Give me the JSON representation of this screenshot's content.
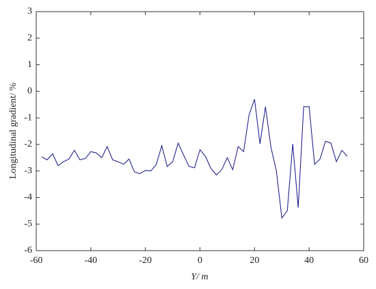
{
  "chart_data": {
    "type": "line",
    "x_label": "Y/ m",
    "y_label": "Longitudinal gradient/ %",
    "x": [
      -58,
      -56,
      -54,
      -52,
      -50,
      -48,
      -46,
      -44,
      -42,
      -40,
      -38,
      -36,
      -34,
      -32,
      -30,
      -28,
      -26,
      -24,
      -22,
      -20,
      -18,
      -16,
      -14,
      -12,
      -10,
      -8,
      -6,
      -4,
      -2,
      0,
      2,
      4,
      6,
      8,
      10,
      12,
      14,
      16,
      18,
      20,
      22,
      24,
      26,
      28,
      30,
      32,
      34,
      36,
      38,
      40,
      42,
      44,
      46,
      48,
      50,
      52,
      54
    ],
    "series": [
      {
        "color": "#23238f",
        "values": [
          -2.47,
          -2.58,
          -2.35,
          -2.8,
          -2.65,
          -2.55,
          -2.22,
          -2.58,
          -2.53,
          -2.27,
          -2.32,
          -2.5,
          -2.08,
          -2.58,
          -2.65,
          -2.75,
          -2.55,
          -3.04,
          -3.1,
          -2.98,
          -3.0,
          -2.75,
          -2.05,
          -2.83,
          -2.65,
          -1.95,
          -2.4,
          -2.83,
          -2.88,
          -2.2,
          -2.45,
          -2.9,
          -3.15,
          -2.95,
          -2.5,
          -2.95,
          -2.08,
          -2.27,
          -0.88,
          -0.3,
          -1.98,
          -0.58,
          -2.1,
          -3.0,
          -4.77,
          -4.5,
          -1.98,
          -4.38,
          -0.58,
          -0.58,
          -2.75,
          -2.55,
          -1.88,
          -1.95,
          -2.65,
          -2.22,
          -2.45
        ]
      }
    ],
    "xlim": [
      -60,
      60
    ],
    "xticks": [
      -60,
      -40,
      -20,
      0,
      20,
      40,
      60
    ],
    "ylim": [
      -6,
      3
    ],
    "yticks": [
      -6,
      -5,
      -4,
      -3,
      -2,
      -1,
      0,
      1,
      2,
      3
    ],
    "grid": false
  }
}
